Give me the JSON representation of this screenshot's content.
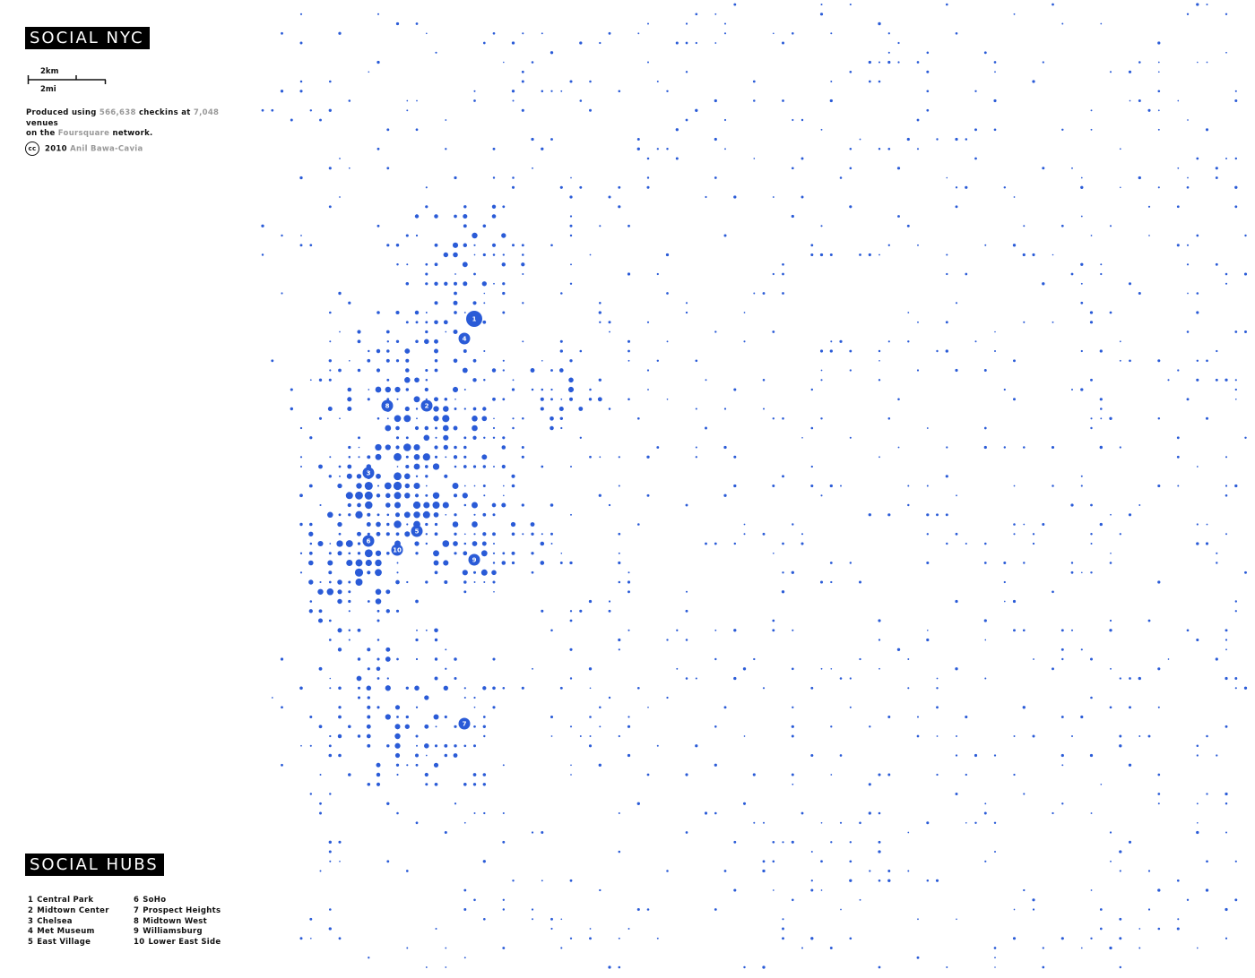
{
  "title": "SOCIAL NYC",
  "scale": {
    "km": "2km",
    "mi": "2mi"
  },
  "description": {
    "produced": "Produced using",
    "checkins": "566,638",
    "checkins_text": "checkins at",
    "venues": "7,048",
    "venues_text": "venues",
    "on_the": "on the",
    "network": "Foursquare",
    "network_text": "network."
  },
  "copyright": {
    "icon": "cc",
    "year": "2010",
    "author": "Anil Bawa-Cavia"
  },
  "hubs_title": "SOCIAL HUBS",
  "hubs": [
    {
      "number": 1,
      "name": "Central Park"
    },
    {
      "number": 2,
      "name": "Midtown Center"
    },
    {
      "number": 3,
      "name": "Chelsea"
    },
    {
      "number": 4,
      "name": "Met Museum"
    },
    {
      "number": 5,
      "name": "East Village"
    },
    {
      "number": 6,
      "name": "SoHo"
    },
    {
      "number": 7,
      "name": "Prospect Heights"
    },
    {
      "number": 8,
      "name": "Midtown West"
    },
    {
      "number": 9,
      "name": "Williamsburg"
    },
    {
      "number": 10,
      "name": "Lower East Side"
    }
  ]
}
